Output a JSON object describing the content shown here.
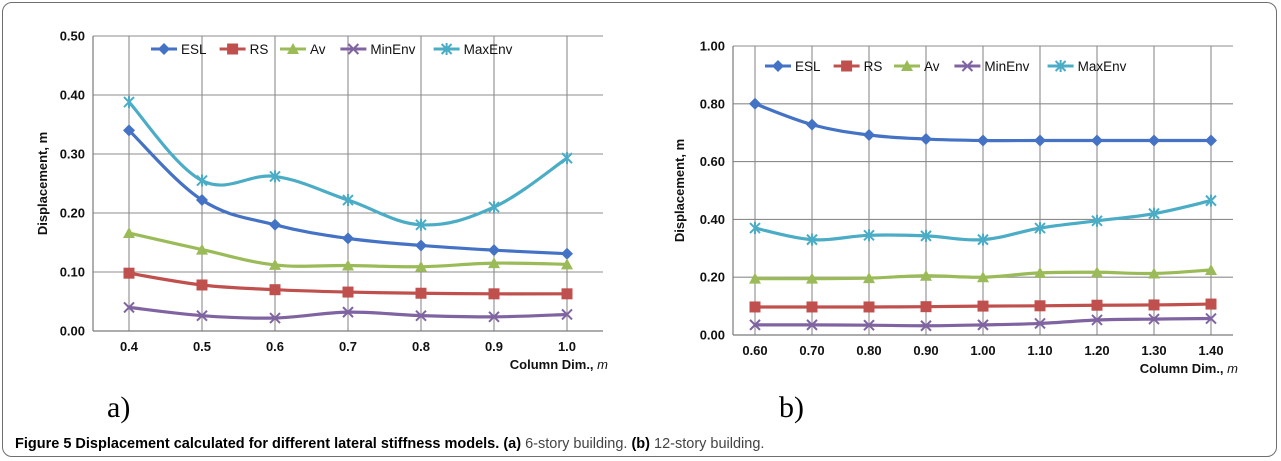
{
  "chart_data": [
    {
      "type": "line",
      "panel": "a)",
      "x": [
        0.4,
        0.5,
        0.6,
        0.7,
        0.8,
        0.9,
        1.0
      ],
      "x_tick_labels": [
        "0.4",
        "0.5",
        "0.6",
        "0.7",
        "0.8",
        "0.9",
        "1.0"
      ],
      "y_tick_labels": [
        "0.00",
        "0.10",
        "0.20",
        "0.30",
        "0.40",
        "0.50"
      ],
      "ylim": [
        0,
        0.5
      ],
      "xlabel": "Column Dim., m",
      "ylabel": "Displacement, m",
      "grid": true,
      "legend_position": "top",
      "series": [
        {
          "name": "ESL",
          "marker": "diamond",
          "color": "#4472c4",
          "values": [
            0.34,
            0.222,
            0.18,
            0.157,
            0.145,
            0.137,
            0.131
          ]
        },
        {
          "name": "RS",
          "marker": "square",
          "color": "#c0504d",
          "values": [
            0.098,
            0.078,
            0.07,
            0.066,
            0.064,
            0.063,
            0.063
          ]
        },
        {
          "name": "Av",
          "marker": "triangle",
          "color": "#9bbb59",
          "values": [
            0.166,
            0.138,
            0.112,
            0.111,
            0.109,
            0.115,
            0.113
          ]
        },
        {
          "name": "MinEnv",
          "marker": "x",
          "color": "#8064a2",
          "values": [
            0.04,
            0.026,
            0.022,
            0.032,
            0.026,
            0.024,
            0.028
          ]
        },
        {
          "name": "MaxEnv",
          "marker": "star",
          "color": "#4bacc6",
          "values": [
            0.388,
            0.255,
            0.262,
            0.222,
            0.18,
            0.21,
            0.293
          ]
        }
      ]
    },
    {
      "type": "line",
      "panel": "b)",
      "x": [
        0.6,
        0.7,
        0.8,
        0.9,
        1.0,
        1.1,
        1.2,
        1.3,
        1.4
      ],
      "x_tick_labels": [
        "0.60",
        "0.70",
        "0.80",
        "0.90",
        "1.00",
        "1.10",
        "1.20",
        "1.30",
        "1.40"
      ],
      "y_tick_labels": [
        "0.00",
        "0.20",
        "0.40",
        "0.60",
        "0.80",
        "1.00"
      ],
      "ylim": [
        0,
        1.0
      ],
      "xlabel": "Column Dim., m",
      "ylabel": "Displacement, m",
      "grid": true,
      "legend_position": "top",
      "series": [
        {
          "name": "ESL",
          "marker": "diamond",
          "color": "#4472c4",
          "values": [
            0.8,
            0.728,
            0.692,
            0.678,
            0.673,
            0.673,
            0.673,
            0.673,
            0.673
          ]
        },
        {
          "name": "RS",
          "marker": "square",
          "color": "#c0504d",
          "values": [
            0.097,
            0.097,
            0.097,
            0.098,
            0.1,
            0.101,
            0.103,
            0.104,
            0.107
          ]
        },
        {
          "name": "Av",
          "marker": "triangle",
          "color": "#9bbb59",
          "values": [
            0.195,
            0.195,
            0.197,
            0.205,
            0.2,
            0.215,
            0.217,
            0.213,
            0.225
          ]
        },
        {
          "name": "MinEnv",
          "marker": "x",
          "color": "#8064a2",
          "values": [
            0.035,
            0.035,
            0.034,
            0.032,
            0.035,
            0.04,
            0.052,
            0.055,
            0.057
          ]
        },
        {
          "name": "MaxEnv",
          "marker": "star",
          "color": "#4bacc6",
          "values": [
            0.37,
            0.33,
            0.345,
            0.343,
            0.33,
            0.37,
            0.395,
            0.42,
            0.465
          ]
        }
      ]
    }
  ],
  "panel_labels": {
    "a": "a)",
    "b": "b)"
  },
  "caption": {
    "lead": "Figure 5 Displacement calculated for different lateral stiffness models.",
    "part_a_tag": "(a)",
    "part_a_text": "6-story building.",
    "part_b_tag": "(b)",
    "part_b_text": "12-story building."
  }
}
